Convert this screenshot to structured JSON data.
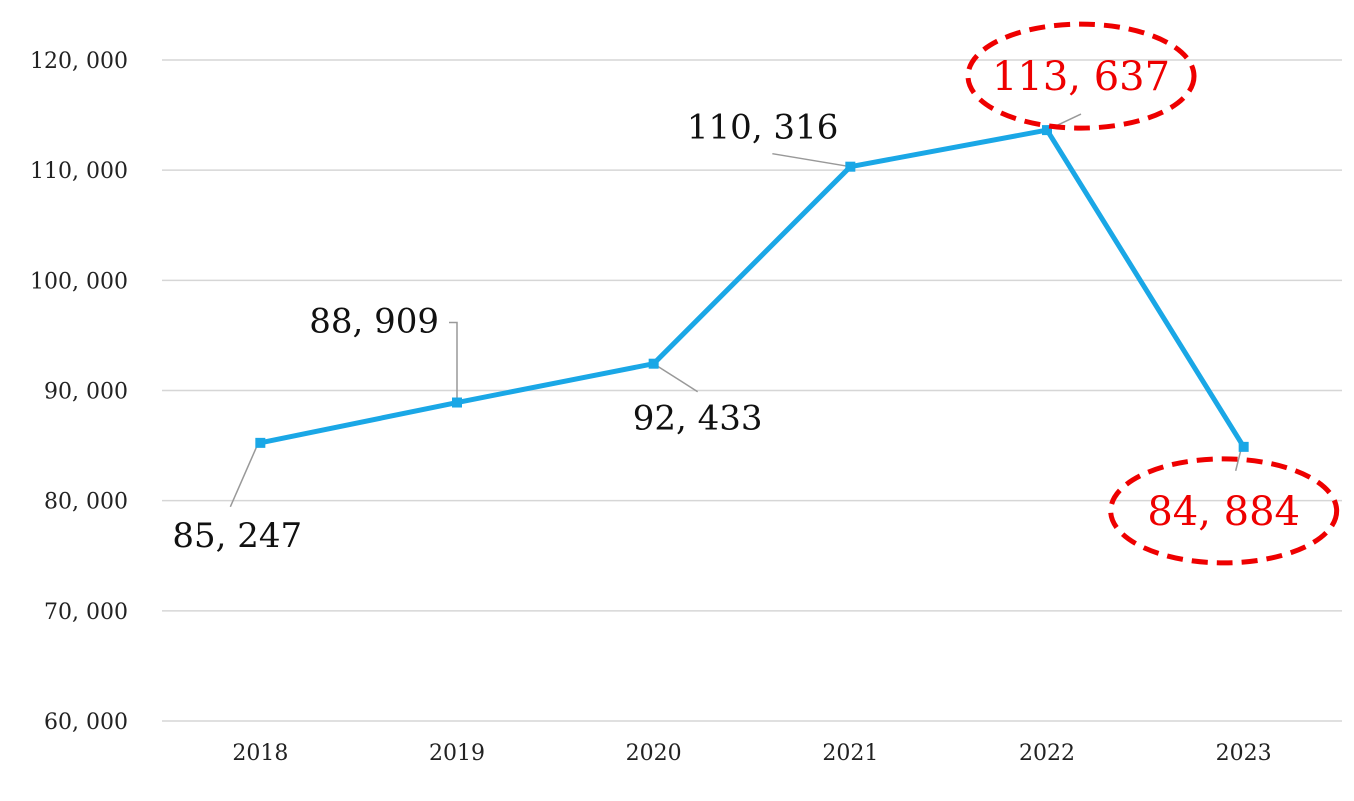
{
  "chart_data": {
    "type": "line",
    "categories": [
      "2018",
      "2019",
      "2020",
      "2021",
      "2022",
      "2023"
    ],
    "values": [
      85247,
      88909,
      92433,
      110316,
      113637,
      84884
    ],
    "value_labels": [
      "85, 247",
      "88, 909",
      "92, 433",
      "110, 316",
      "113, 637",
      "84, 884"
    ],
    "highlighted": [
      "2022",
      "2023"
    ],
    "ylim": [
      60000,
      120000
    ],
    "yticks": [
      60000,
      70000,
      80000,
      90000,
      100000,
      110000,
      120000
    ],
    "ytick_labels": [
      "60, 000",
      "70, 000",
      "80, 000",
      "90, 000",
      "100, 000",
      "110, 000",
      "120, 000"
    ],
    "grid": true,
    "legend": "none",
    "title": "",
    "xlabel": "",
    "ylabel": ""
  },
  "colors": {
    "line": "#1aa7e6",
    "grid": "#d6d6d6",
    "highlight": "#ee0000",
    "leader": "#999999"
  }
}
